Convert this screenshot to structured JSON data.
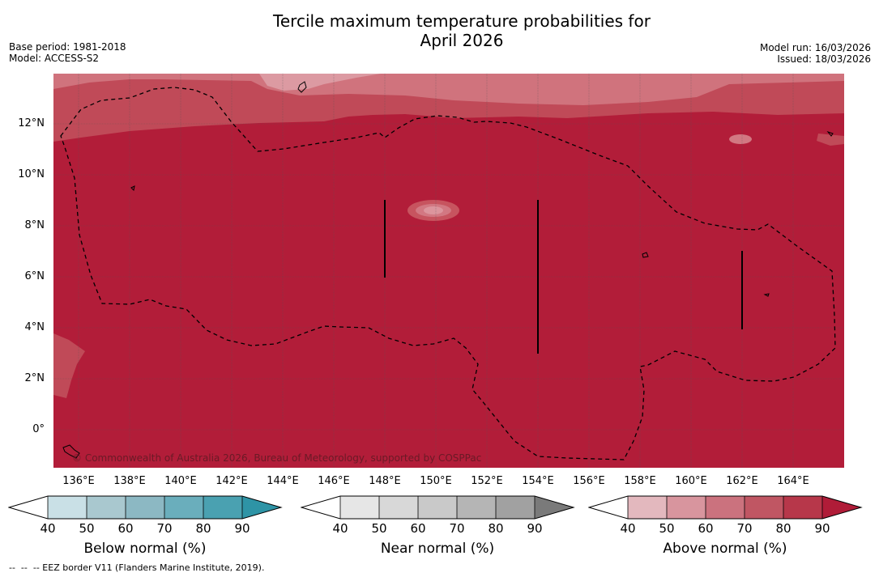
{
  "title_line1": "Tercile maximum temperature probabilities for",
  "title_line2": "April 2026",
  "base_period": "Base period: 1981-2018",
  "model": "Model: ACCESS-S2",
  "model_run": "Model run: 16/03/2026",
  "issued": "Issued: 18/03/2026",
  "copyright": "© Commonwealth of Australia 2026, Bureau of Meteorology, supported by COSPPac",
  "footnote": "--  --  -- EEZ border V11 (Flanders Marine Institute, 2019).",
  "lat_labels": [
    "12°N",
    "10°N",
    "8°N",
    "6°N",
    "4°N",
    "2°N",
    "0°"
  ],
  "lon_labels": [
    "136°E",
    "138°E",
    "140°E",
    "142°E",
    "144°E",
    "146°E",
    "148°E",
    "150°E",
    "152°E",
    "154°E",
    "156°E",
    "158°E",
    "160°E",
    "162°E",
    "164°E"
  ],
  "colorbars": [
    {
      "label": "Below normal (%)",
      "ticks": [
        "40",
        "50",
        "60",
        "70",
        "80",
        "90"
      ],
      "colors": [
        "#ffffff",
        "#c9e0e6",
        "#a9c8cf",
        "#8cb8c3",
        "#6aaebc",
        "#4aa1b1",
        "#2e94a6"
      ]
    },
    {
      "label": "Near normal (%)",
      "ticks": [
        "40",
        "50",
        "60",
        "70",
        "80",
        "90"
      ],
      "colors": [
        "#ffffff",
        "#e6e6e6",
        "#d8d8d8",
        "#c9c9c9",
        "#b5b5b5",
        "#a1a1a1",
        "#7a7a7a"
      ]
    },
    {
      "label": "Above normal (%)",
      "ticks": [
        "40",
        "50",
        "60",
        "70",
        "80",
        "90"
      ],
      "colors": [
        "#ffffff",
        "#e3b8be",
        "#d8959e",
        "#cb727e",
        "#c05663",
        "#b7374a",
        "#b01c38"
      ]
    }
  ],
  "palette": {
    "dominant": "#b21d39",
    "band_70": "#c04a58",
    "band_60": "#d17580"
  }
}
